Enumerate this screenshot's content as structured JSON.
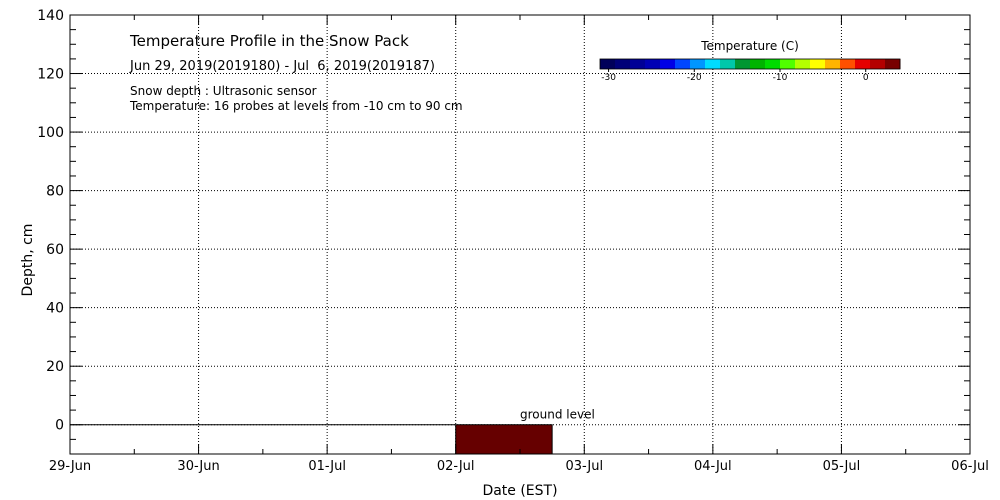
{
  "chart_data": {
    "type": "heatmap",
    "title": "Temperature Profile in the Snow Pack",
    "subtitle": "Jun 29, 2019(2019180) - Jul  6, 2019(2019187)",
    "notes": [
      "Snow depth : Ultrasonic sensor",
      "Temperature: 16 probes at levels from -10 cm to 90 cm"
    ],
    "xlabel": "Date (EST)",
    "ylabel": "Depth, cm",
    "x_ticks": [
      "29-Jun",
      "30-Jun",
      "01-Jul",
      "02-Jul",
      "03-Jul",
      "04-Jul",
      "05-Jul",
      "06-Jul"
    ],
    "xlim_days": [
      0,
      7
    ],
    "y_ticks": [
      0,
      20,
      40,
      60,
      80,
      100,
      120,
      140
    ],
    "ylim": [
      -10,
      140
    ],
    "grid": true,
    "ground_level": 0,
    "ground_label": "ground level",
    "cells": [
      {
        "x_start": 3.0,
        "x_end": 3.75,
        "y_start": -10,
        "y_end": 0,
        "color": "#660000"
      }
    ],
    "colorbar": {
      "title": "Temperature (C)",
      "ticks": [
        -30,
        -20,
        -10,
        0
      ],
      "range": [
        -31,
        4
      ],
      "colors": [
        "#00005a",
        "#000078",
        "#000096",
        "#0000b4",
        "#0000e6",
        "#0046ff",
        "#0096ff",
        "#00dcff",
        "#00c8aa",
        "#009632",
        "#00b400",
        "#00dc00",
        "#50ff00",
        "#b4ff00",
        "#ffff00",
        "#ffb400",
        "#ff5000",
        "#e60000",
        "#b40000",
        "#780000"
      ]
    }
  }
}
